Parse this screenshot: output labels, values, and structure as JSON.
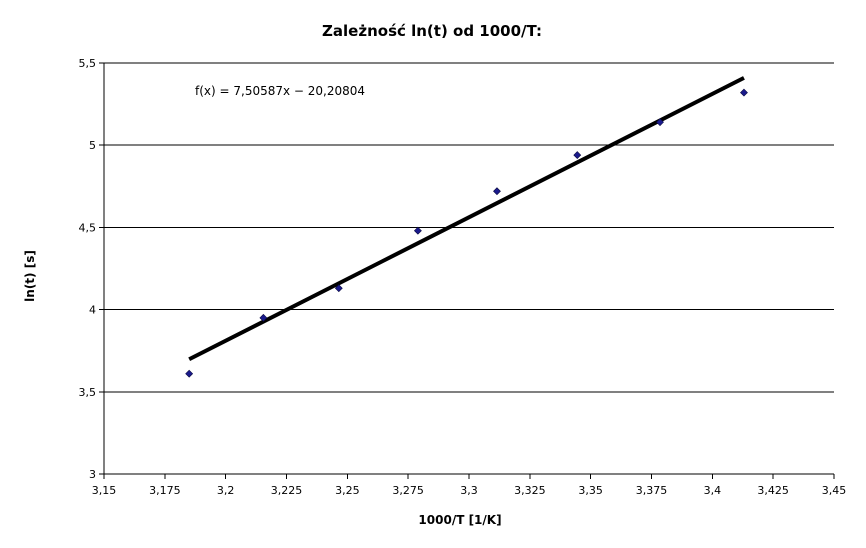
{
  "chart_data": {
    "type": "scatter",
    "title": "Zależność ln(t) od 1000/T:",
    "xlabel": "1000/T [1/K]",
    "ylabel": "ln(t) [s]",
    "xlim": [
      3.15,
      3.45
    ],
    "ylim": [
      3,
      5.5
    ],
    "x_ticks": [
      "3,15",
      "3,175",
      "3,2",
      "3,225",
      "3,25",
      "3,275",
      "3,3",
      "3,325",
      "3,35",
      "3,375",
      "3,4",
      "3,425",
      "3,45"
    ],
    "y_ticks": [
      "3",
      "3,5",
      "4",
      "4,5",
      "5",
      "5,5"
    ],
    "grid": "horizontal",
    "marker_color": "#1a1a8c",
    "trend_color": "#000000",
    "series": [
      {
        "points": [
          {
            "x": 3.185,
            "y": 3.61
          },
          {
            "x": 3.2155,
            "y": 3.95
          },
          {
            "x": 3.2465,
            "y": 4.13
          },
          {
            "x": 3.279,
            "y": 4.48
          },
          {
            "x": 3.3115,
            "y": 4.72
          },
          {
            "x": 3.3445,
            "y": 4.94
          },
          {
            "x": 3.3785,
            "y": 5.14
          },
          {
            "x": 3.413,
            "y": 5.32
          }
        ]
      }
    ],
    "trendline": {
      "label": "f(x) = 7,50587x − 20,20804",
      "slope": 7.50587,
      "intercept": -20.20804,
      "x_range": [
        3.185,
        3.413
      ]
    }
  }
}
